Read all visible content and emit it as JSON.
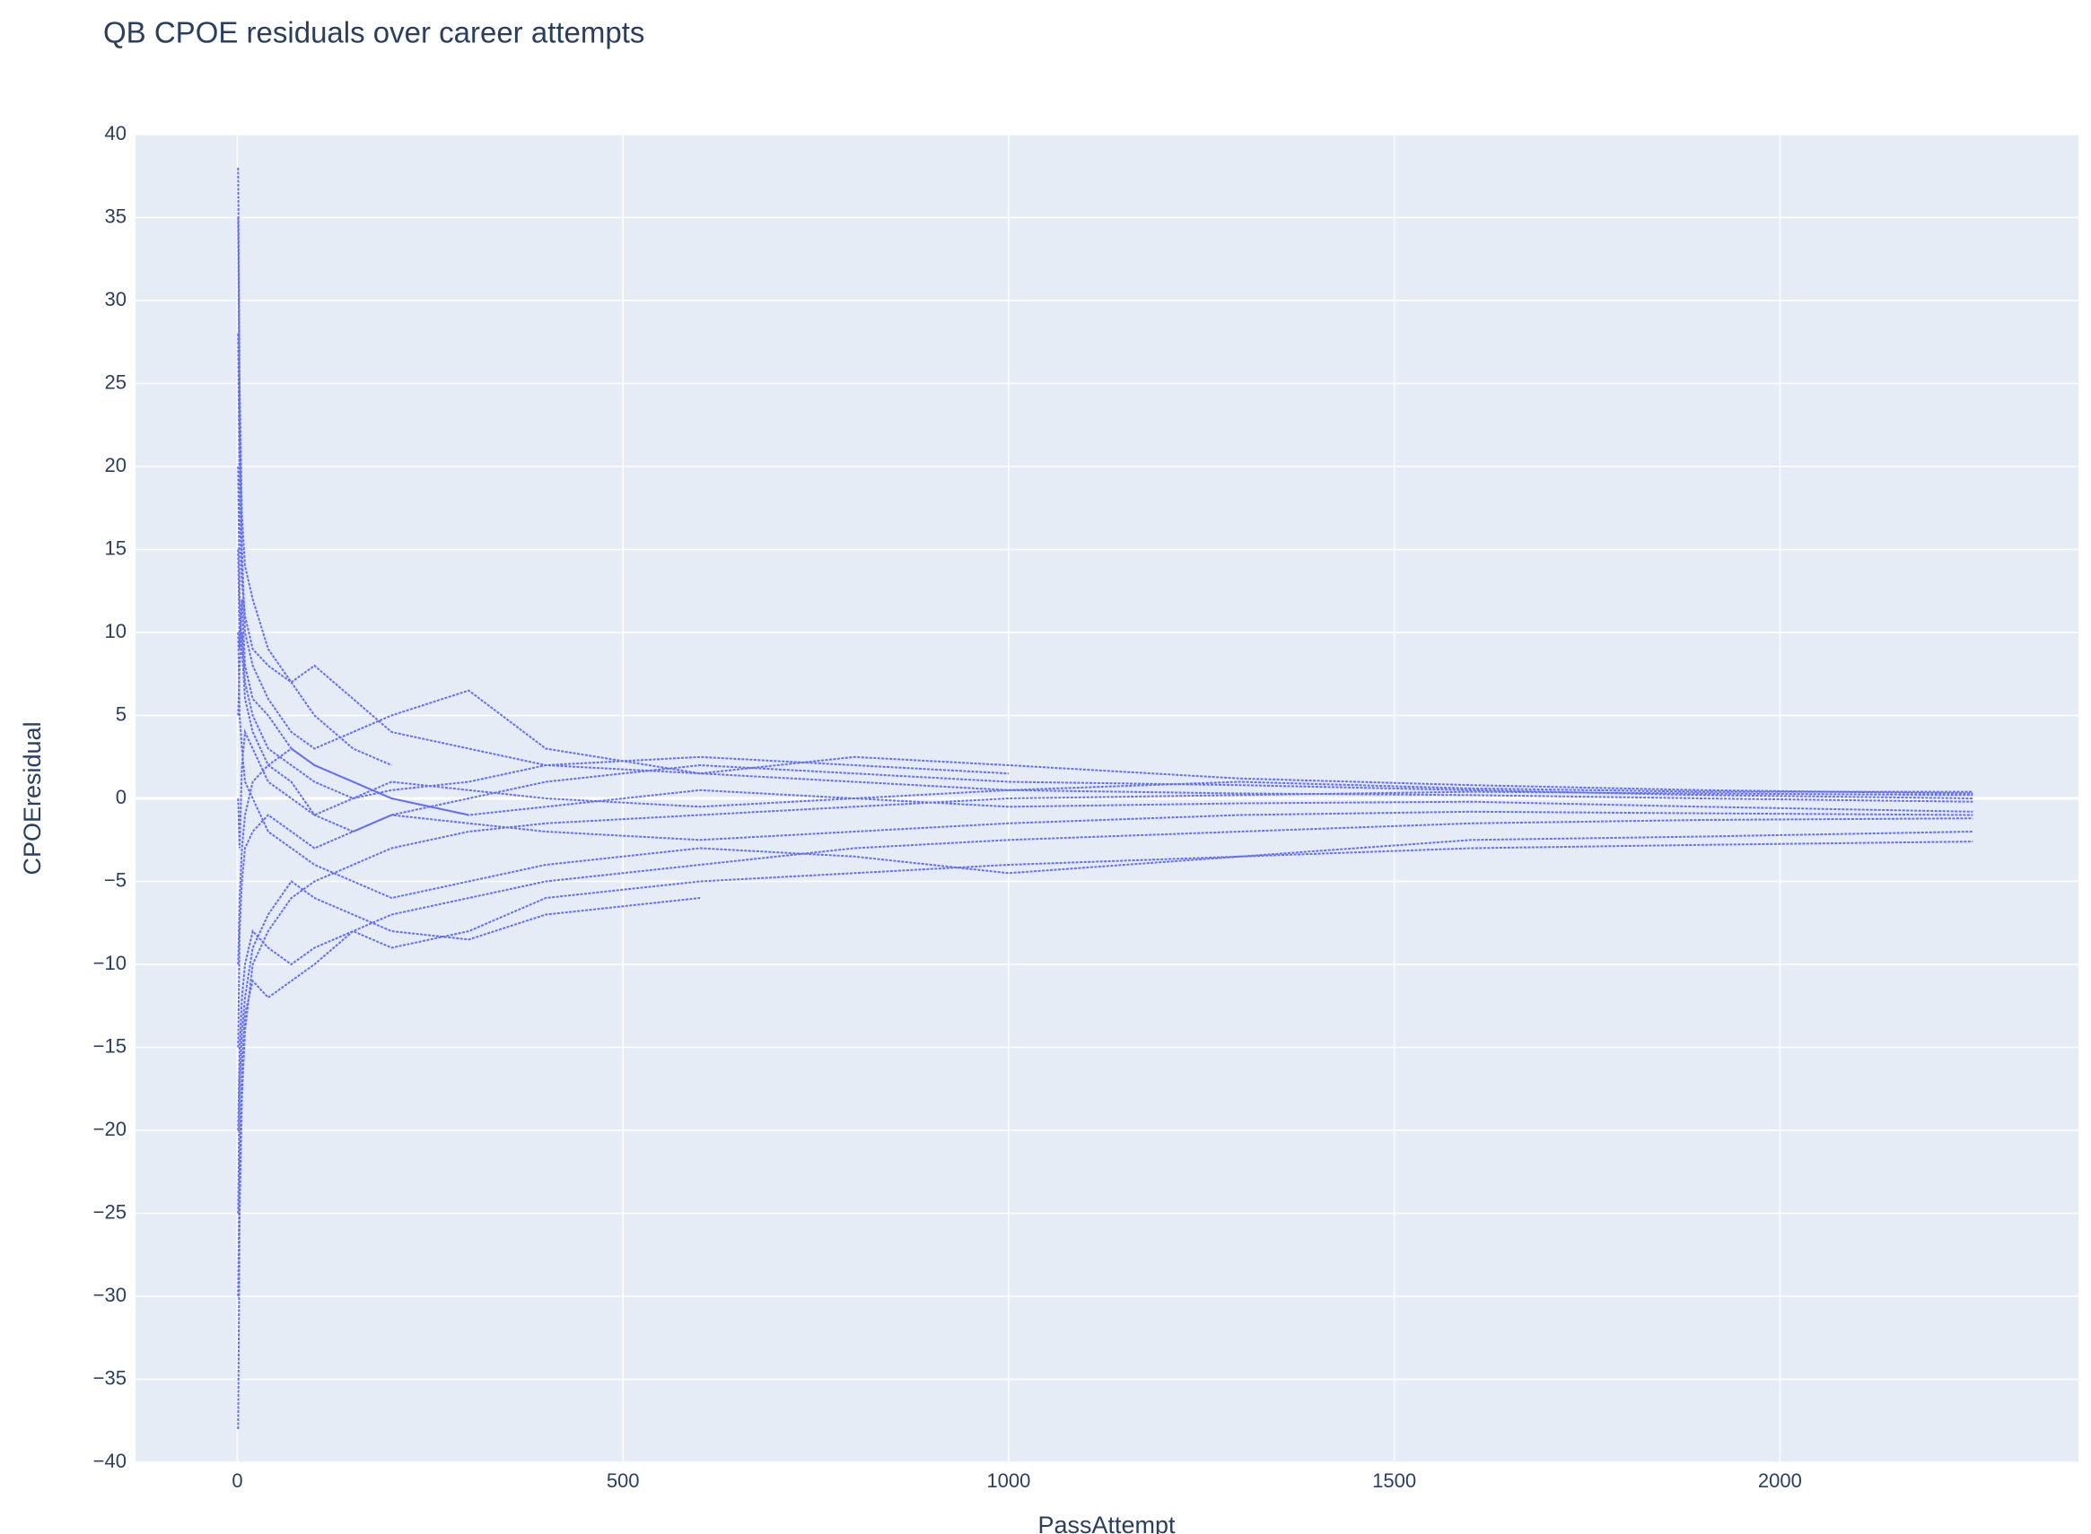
{
  "chart_data": {
    "type": "scatter",
    "title": "QB CPOE residuals over career attempts",
    "x_label": "PassAttempt",
    "y_label": "CPOEresidual",
    "x": [
      1,
      3,
      6,
      10,
      20,
      40,
      70,
      100,
      150,
      200,
      300,
      400,
      600,
      800,
      1000,
      1300,
      1600,
      1900,
      2250
    ],
    "series": [
      {
        "color": "#636efa",
        "values": [
          35,
          22,
          15,
          10,
          8,
          6,
          4,
          3,
          4,
          5,
          6.5,
          3,
          1.5,
          2.5,
          2,
          1.2,
          0.8,
          0.5,
          0.3
        ]
      },
      {
        "color": "#636efa",
        "values": [
          -38,
          -25,
          -18,
          -14,
          -10,
          -8,
          -6,
          -5,
          -4,
          -3,
          -2,
          -1.5,
          -1,
          -0.5,
          0,
          0.2,
          0.4,
          0.3,
          0.2
        ]
      },
      {
        "color": "#636efa",
        "values": [
          20,
          12,
          9,
          6,
          4,
          2,
          1,
          -1,
          -2,
          -1,
          0,
          1,
          2,
          1.5,
          1,
          0.8,
          0.5,
          0.2,
          0
        ]
      },
      {
        "color": "#636efa",
        "values": [
          -20,
          -15,
          -12,
          -10,
          -8,
          -9,
          -10,
          -9,
          -8,
          -9,
          -8,
          -6,
          -5,
          -4.5,
          -4,
          -3.5,
          -3,
          -2.8,
          -2.6
        ]
      },
      {
        "color": "#636efa",
        "values": [
          10,
          5,
          3,
          1,
          0,
          -2,
          -3,
          -4,
          -5,
          -6,
          -5,
          -4,
          -3,
          -3.5,
          -4.5,
          -3.5,
          -2.5,
          -2.3,
          -2
        ]
      },
      {
        "color": "#636efa",
        "values": [
          -10,
          -6,
          -3,
          -1,
          1,
          2,
          3,
          2,
          1,
          0,
          -1,
          -0.5,
          0.5,
          0,
          -0.5,
          -0.3,
          -0.2,
          -0.5,
          -0.8
        ]
      },
      {
        "color": "#636efa",
        "values": [
          28,
          18,
          13,
          11,
          9,
          8,
          7,
          8,
          6,
          4,
          3,
          2,
          1.5,
          1,
          0.5,
          1,
          0.6,
          0.4,
          0.4
        ]
      },
      {
        "color": "#636efa",
        "values": [
          -30,
          -22,
          -16,
          -13,
          -11,
          -12,
          -11,
          -10,
          -8,
          -7,
          -6,
          -5,
          -4,
          -3,
          -2.5,
          -2,
          -1.5,
          -1.3,
          -1.2
        ]
      },
      {
        "color": "#636efa",
        "values": [
          15,
          9,
          12,
          8,
          6,
          5,
          3,
          2,
          1,
          0,
          -1,
          null,
          null,
          null,
          null,
          null,
          null,
          null,
          null
        ]
      },
      {
        "color": "#636efa",
        "values": [
          -25,
          -17,
          -14,
          -12,
          -9,
          -7,
          -5,
          -6,
          -7,
          -8,
          -8.5,
          -7,
          -6,
          null,
          null,
          null,
          null,
          null,
          null
        ]
      },
      {
        "color": "#636efa",
        "values": [
          5,
          8,
          10,
          7,
          5,
          3,
          2,
          1,
          0,
          0.5,
          1,
          2,
          2.5,
          2,
          1.5,
          null,
          null,
          null,
          null
        ]
      },
      {
        "color": "#636efa",
        "values": [
          -15,
          -8,
          -5,
          -3,
          -2,
          -1,
          -2,
          -3,
          -2,
          -1,
          -1.5,
          -2,
          -2.5,
          -2,
          -1.5,
          -1,
          -0.8,
          -0.9,
          -1
        ]
      },
      {
        "color": "#636efa",
        "values": [
          38,
          25,
          17,
          14,
          12,
          9,
          7,
          5,
          3,
          2,
          null,
          null,
          null,
          null,
          null,
          null,
          null,
          null,
          null
        ]
      },
      {
        "color": "#636efa",
        "values": [
          0,
          -3,
          2,
          4,
          3,
          1,
          0,
          -1,
          0,
          1,
          0.5,
          0,
          -0.5,
          0,
          0.5,
          0.3,
          0.2,
          0,
          -0.2
        ]
      }
    ],
    "xlim": [
      -132,
      2387
    ],
    "xticks": [
      0,
      500,
      1000,
      1500,
      2000
    ],
    "ylim": [
      -40,
      40
    ],
    "yticks": [
      {
        "value": -40,
        "label": "−40"
      },
      {
        "value": -35,
        "label": "−35"
      },
      {
        "value": -30,
        "label": "−30"
      },
      {
        "value": -25,
        "label": "−25"
      },
      {
        "value": -20,
        "label": "−20"
      },
      {
        "value": -15,
        "label": "−15"
      },
      {
        "value": -10,
        "label": "−10"
      },
      {
        "value": -5,
        "label": "−5"
      },
      0,
      5,
      10,
      15,
      20,
      25,
      30,
      35,
      40
    ],
    "grid": true,
    "plot_bgcolor": "#e5ecf6"
  }
}
